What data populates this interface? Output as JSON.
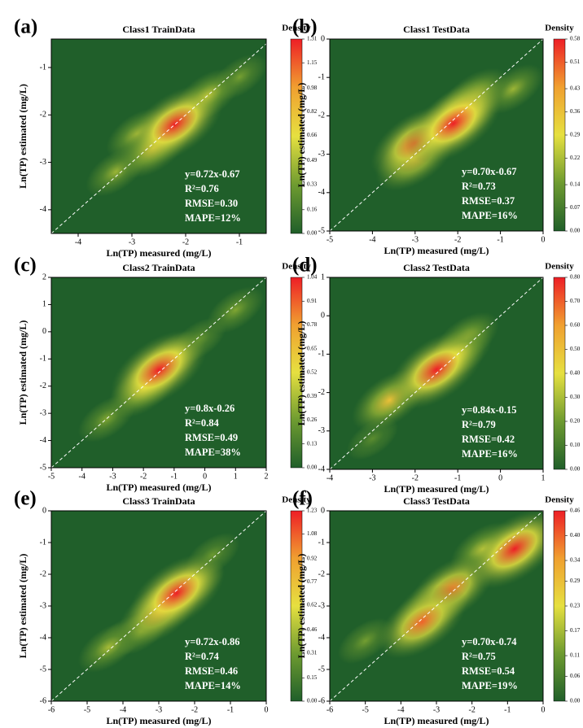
{
  "chart_data": [
    {
      "type": "density",
      "panel_label": "(a)",
      "title": "Class1 TrainData",
      "x_label": "Ln(TP) measured (mg/L)",
      "y_label": "Ln(TP) estimated (mg/L)",
      "xlim": [
        -4.5,
        -0.5
      ],
      "xticks": [
        -4,
        -3,
        -2,
        -1
      ],
      "ylim": [
        -4.5,
        -0.4
      ],
      "yticks": [
        -4,
        -3,
        -2,
        -1
      ],
      "colorbar_title": "Density",
      "clim": [
        0,
        1.31
      ],
      "colorbar_ticks": [
        {
          "value": 0,
          "label": "0.00"
        },
        0.16,
        0.33,
        0.49,
        0.66,
        0.82,
        0.98,
        1.15,
        1.31
      ],
      "stats": [
        "y=0.72x-0.67",
        "R²=0.76",
        "RMSE=0.30",
        "MAPE=12%"
      ],
      "peaks": {
        "x": [
          -1.0,
          -3.3,
          -2.9,
          -1.6,
          -2.6,
          -2.2
        ],
        "y": [
          -1.2,
          -3.2,
          -2.4,
          -1.6,
          -2.7,
          -2.2
        ],
        "values": [
          0.35,
          0.45,
          0.5,
          0.6,
          0.75,
          1.31
        ]
      }
    },
    {
      "type": "density",
      "panel_label": "(b)",
      "title": "Class1 TestData",
      "x_label": "Ln(TP) measured (mg/L)",
      "y_label": "Ln(TP) estimated (mg/L)",
      "xlim": [
        -5,
        0
      ],
      "xticks": [
        -5,
        -4,
        -3,
        -2,
        -1,
        0
      ],
      "ylim": [
        -5,
        0
      ],
      "yticks": [
        -5,
        -4,
        -3,
        -2,
        -1,
        0
      ],
      "colorbar_title": "Density",
      "clim": [
        0,
        0.58
      ],
      "colorbar_ticks": [
        {
          "value": 0,
          "label": "0.00"
        },
        0.07,
        0.14,
        0.22,
        0.29,
        0.36,
        0.43,
        0.51,
        0.58
      ],
      "stats": [
        "y=0.70x-0.67",
        "R²=0.73",
        "RMSE=0.37",
        "MAPE=16%"
      ],
      "peaks": {
        "x": [
          -0.7,
          -1.6,
          -3.0,
          -1.9,
          -3.0,
          -2.1
        ],
        "y": [
          -1.3,
          -1.5,
          -3.1,
          -1.9,
          -2.7,
          -2.2
        ],
        "values": [
          0.2,
          0.3,
          0.4,
          0.45,
          0.5,
          0.58
        ]
      }
    },
    {
      "type": "density",
      "panel_label": "(c)",
      "title": "Class2 TrainData",
      "x_label": "Ln(TP) measured (mg/L)",
      "y_label": "Ln(TP) estimated (mg/L)",
      "xlim": [
        -5,
        2
      ],
      "xticks": [
        -5,
        -4,
        -3,
        -2,
        -1,
        0,
        1,
        2
      ],
      "ylim": [
        -5,
        2
      ],
      "yticks": [
        -5,
        -4,
        -3,
        -2,
        -1,
        0,
        1,
        2
      ],
      "colorbar_title": "Density",
      "clim": [
        0,
        1.04
      ],
      "colorbar_ticks": [
        {
          "value": 0,
          "label": "0.00"
        },
        0.13,
        0.26,
        0.39,
        0.52,
        0.65,
        0.78,
        0.91,
        1.04
      ],
      "stats": [
        "y=0.8x-0.26",
        "R²=0.84",
        "RMSE=0.49",
        "MAPE=38%"
      ],
      "peaks": {
        "x": [
          -0.2,
          1.0,
          -3.2,
          -1.0,
          -2.0,
          -1.5
        ],
        "y": [
          -0.3,
          0.8,
          -3.2,
          -0.9,
          -2.1,
          -1.4
        ],
        "values": [
          0.25,
          0.3,
          0.3,
          0.4,
          0.55,
          1.04
        ]
      }
    },
    {
      "type": "density",
      "panel_label": "(d)",
      "title": "Class2 TestData",
      "x_label": "Ln(TP) measured (mg/L)",
      "y_label": "Ln(TP) estimated (mg/L)",
      "xlim": [
        -4,
        1
      ],
      "xticks": [
        -4,
        -3,
        -2,
        -1,
        0,
        1
      ],
      "ylim": [
        -4,
        1
      ],
      "yticks": [
        -4,
        -3,
        -2,
        -1,
        0,
        1
      ],
      "colorbar_title": "Density",
      "clim": [
        0,
        0.8
      ],
      "colorbar_ticks": [
        {
          "value": 0,
          "label": "0.00"
        },
        {
          "value": 0.1,
          "label": "0.10"
        },
        {
          "value": 0.2,
          "label": "0.20"
        },
        {
          "value": 0.3,
          "label": "0.30"
        },
        {
          "value": 0.4,
          "label": "0.40"
        },
        {
          "value": 0.5,
          "label": "0.50"
        },
        {
          "value": 0.6,
          "label": "0.60"
        },
        {
          "value": 0.7,
          "label": "0.70"
        },
        {
          "value": 0.8,
          "label": "0.80"
        }
      ],
      "stats": [
        "y=0.84x-0.15",
        "R²=0.79",
        "RMSE=0.42",
        "MAPE=16%"
      ],
      "peaks": {
        "x": [
          -3.0,
          -0.8,
          -1.0,
          -2.6,
          -1.5
        ],
        "y": [
          -3.2,
          -0.6,
          -1.0,
          -2.2,
          -1.4
        ],
        "values": [
          0.15,
          0.35,
          0.4,
          0.5,
          0.8
        ]
      }
    },
    {
      "type": "density",
      "panel_label": "(e)",
      "title": "Class3 TrainData",
      "x_label": "Ln(TP) measured (mg/L)",
      "y_label": "Ln(TP) estimated (mg/L)",
      "xlim": [
        -6,
        0
      ],
      "xticks": [
        -6,
        -5,
        -4,
        -3,
        -2,
        -1,
        0
      ],
      "ylim": [
        -6,
        0
      ],
      "yticks": [
        -6,
        -5,
        -4,
        -3,
        -2,
        -1,
        0
      ],
      "colorbar_title": "Density",
      "clim": [
        0,
        1.23
      ],
      "colorbar_ticks": [
        {
          "value": 0,
          "label": "0.00"
        },
        0.15,
        0.31,
        0.46,
        0.62,
        0.77,
        0.92,
        1.08,
        1.23
      ],
      "stats": [
        "y=0.72x-0.86",
        "R²=0.74",
        "RMSE=0.46",
        "MAPE=14%"
      ],
      "peaks": {
        "x": [
          -1.5,
          -4.0,
          -3.5,
          -2.0,
          -4.4,
          -3.0,
          -2.5
        ],
        "y": [
          -1.4,
          -4.0,
          -3.8,
          -2.3,
          -4.3,
          -3.2,
          -2.6
        ],
        "values": [
          0.3,
          0.3,
          0.35,
          0.4,
          0.45,
          0.9,
          1.23
        ]
      }
    },
    {
      "type": "density",
      "panel_label": "(f)",
      "title": "Class3 TestData",
      "x_label": "Ln(TP) measured (mg/L)",
      "y_label": "Ln(TP) estimated (mg/L)",
      "xlim": [
        -6,
        0
      ],
      "xticks": [
        -6,
        -5,
        -4,
        -3,
        -2,
        -1,
        0
      ],
      "ylim": [
        -6,
        0
      ],
      "yticks": [
        -6,
        -5,
        -4,
        -3,
        -2,
        -1,
        0
      ],
      "colorbar_title": "Density",
      "clim": [
        0,
        0.46
      ],
      "colorbar_ticks": [
        {
          "value": 0,
          "label": "0.00"
        },
        0.06,
        0.11,
        0.17,
        0.23,
        0.29,
        0.34,
        {
          "value": 0.4,
          "label": "0.40"
        },
        0.46
      ],
      "stats": [
        "y=0.70x-0.74",
        "R²=0.75",
        "RMSE=0.54",
        "MAPE=19%"
      ],
      "peaks": {
        "x": [
          -5.0,
          -1.7,
          -3.1,
          -2.6,
          -3.4,
          -0.8
        ],
        "y": [
          -4.1,
          -1.2,
          -3.0,
          -2.5,
          -3.5,
          -1.2
        ],
        "values": [
          0.12,
          0.2,
          0.32,
          0.38,
          0.4,
          0.46
        ]
      }
    }
  ]
}
